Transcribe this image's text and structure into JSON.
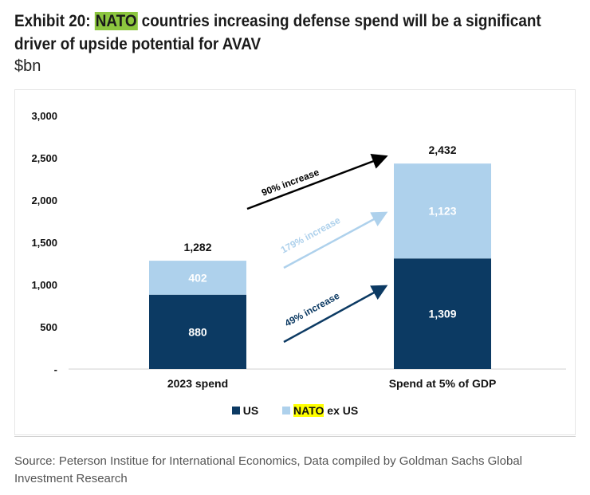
{
  "title": {
    "prefix": "Exhibit 20: ",
    "highlight": "NATO",
    "rest": " countries increasing defense spend will be a significant driver of upside potential for AVAV"
  },
  "unit": "$bn",
  "source": "Source: Peterson Institue for International Economics, Data compiled by Goldman Sachs Global Investment Research",
  "colors": {
    "us": "#0c3a63",
    "nato": "#aed1ec"
  },
  "legend": {
    "us": "US",
    "nato_hl": "NATO",
    "nato_rest": " ex US"
  },
  "chart_data": {
    "type": "bar",
    "stacked": true,
    "categories": [
      "2023 spend",
      "Spend at 5% of GDP"
    ],
    "series": [
      {
        "name": "US",
        "values": [
          880,
          1309
        ]
      },
      {
        "name": "NATO ex US",
        "values": [
          402,
          1123
        ]
      }
    ],
    "totals": [
      "1,282",
      "2,432"
    ],
    "value_labels": [
      [
        "880",
        "1,309"
      ],
      [
        "402",
        "1,123"
      ]
    ],
    "ylim": [
      0,
      3000
    ],
    "yticks": [
      0,
      500,
      1000,
      1500,
      2000,
      2500,
      3000
    ],
    "ytick_labels": [
      "-",
      "500",
      "1,000",
      "1,500",
      "2,000",
      "2,500",
      "3,000"
    ],
    "annotations": [
      "90% increase",
      "179% increase",
      "49% increase"
    ],
    "legend_position": "bottom"
  }
}
